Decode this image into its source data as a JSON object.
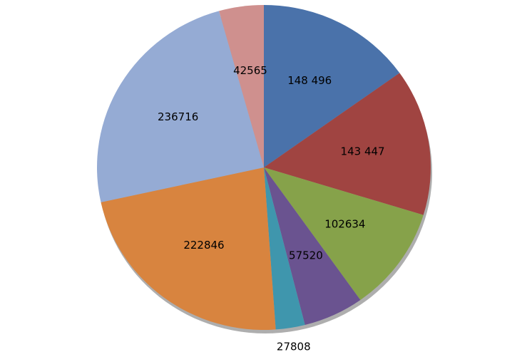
{
  "chart_data": {
    "type": "pie",
    "values": [
      148496,
      143447,
      102634,
      57520,
      27808,
      222846,
      236716,
      42565
    ],
    "value_labels": [
      "148 496",
      "143 447",
      "102634",
      "57520",
      "27808",
      "222846",
      "236716",
      "42565"
    ],
    "colors": [
      "#4a72aa",
      "#a04441",
      "#86a24a",
      "#6a5390",
      "#3f96ad",
      "#d8843f",
      "#95abd4",
      "#cf908e"
    ]
  }
}
